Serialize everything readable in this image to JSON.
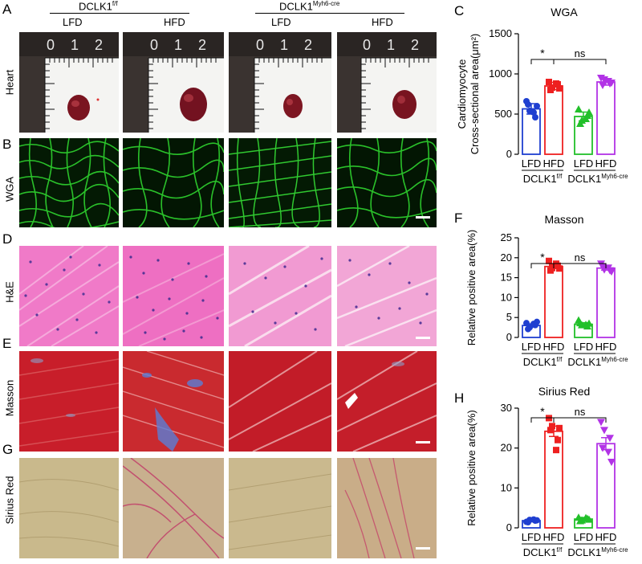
{
  "panels": {
    "A": "A",
    "B": "B",
    "C": "C",
    "D": "D",
    "E": "E",
    "F": "F",
    "G": "G",
    "H": "H"
  },
  "groups": {
    "control": {
      "base": "DCLK1",
      "sup": "f/f"
    },
    "knockout": {
      "base": "DCLK1",
      "sup": "Myh6-cre"
    }
  },
  "columns": [
    "LFD",
    "HFD",
    "LFD",
    "HFD"
  ],
  "rows": [
    "Heart",
    "WGA",
    "H&E",
    "Masson",
    "Sirius Red"
  ],
  "ruler_numbers": [
    "0",
    "1",
    "2"
  ],
  "colors": {
    "lfd_control": "#1f3fd0",
    "hfd_control": "#ee2020",
    "lfd_knockout": "#22c02a",
    "hfd_knockout": "#b233e6"
  },
  "chart_data": [
    {
      "id": "C",
      "type": "bar",
      "title": "WGA",
      "ylabel_lines": [
        "Cardiomyocyte",
        "Cross-sectional area(μm²)"
      ],
      "ylim": [
        0,
        1500
      ],
      "yticks": [
        0,
        500,
        1000,
        1500
      ],
      "categories": [
        "LFD",
        "HFD",
        "LFD",
        "HFD"
      ],
      "values": [
        565,
        850,
        470,
        900
      ],
      "errors": [
        65,
        45,
        55,
        40
      ],
      "points": [
        [
          660,
          540,
          460,
          620,
          520,
          600
        ],
        [
          900,
          830,
          870,
          800,
          880,
          820
        ],
        [
          560,
          420,
          480,
          380,
          440,
          520
        ],
        [
          950,
          930,
          880,
          860,
          910,
          890
        ]
      ],
      "markers": [
        "circle",
        "square",
        "triangle",
        "triangle-down"
      ],
      "significance": [
        {
          "label": "*",
          "from": 0,
          "to": 1
        },
        {
          "label": "ns",
          "from": 1,
          "to": 3
        }
      ]
    },
    {
      "id": "F",
      "type": "bar",
      "title": "Masson",
      "ylabel_lines": [
        "Relative positive area(%)"
      ],
      "ylim": [
        0,
        25
      ],
      "yticks": [
        0,
        5,
        10,
        15,
        20,
        25
      ],
      "categories": [
        "LFD",
        "HFD",
        "LFD",
        "HFD"
      ],
      "values": [
        3.0,
        17.8,
        3.3,
        17.4
      ],
      "errors": [
        0.4,
        0.5,
        0.4,
        0.5
      ],
      "points": [
        [
          3.6,
          2.5,
          3.1,
          2.1,
          3.4,
          3.9
        ],
        [
          19.2,
          17.4,
          18.0,
          16.8,
          18.5,
          17.3
        ],
        [
          4.3,
          3.1,
          2.8,
          3.6,
          3.2,
          3.5
        ],
        [
          18.5,
          17.0,
          16.8,
          17.8,
          17.5,
          16.5
        ]
      ],
      "markers": [
        "circle",
        "square",
        "triangle",
        "triangle-down"
      ],
      "significance": [
        {
          "label": "*",
          "from": 0,
          "to": 1
        },
        {
          "label": "ns",
          "from": 1,
          "to": 3
        }
      ]
    },
    {
      "id": "H",
      "type": "bar",
      "title": "Sirius Red",
      "ylabel_lines": [
        "Relative positive area(%)"
      ],
      "ylim": [
        0,
        30
      ],
      "yticks": [
        0,
        10,
        20,
        30
      ],
      "categories": [
        "LFD",
        "HFD",
        "LFD",
        "HFD"
      ],
      "values": [
        1.8,
        24.2,
        2.2,
        21.1
      ],
      "errors": [
        0.3,
        1.3,
        0.4,
        1.5
      ],
      "points": [
        [
          1.5,
          2.0,
          1.8,
          1.4,
          2.1,
          1.9
        ],
        [
          27.5,
          25.5,
          22.0,
          24.5,
          19.5,
          25.0
        ],
        [
          2.6,
          1.9,
          2.3,
          1.7,
          2.5,
          2.1
        ],
        [
          26.5,
          24.5,
          22.5,
          20.0,
          19.0,
          16.5
        ]
      ],
      "markers": [
        "circle",
        "square",
        "triangle",
        "triangle-down"
      ],
      "significance": [
        {
          "label": "*",
          "from": 0,
          "to": 1
        },
        {
          "label": "ns",
          "from": 1,
          "to": 3
        }
      ]
    }
  ]
}
